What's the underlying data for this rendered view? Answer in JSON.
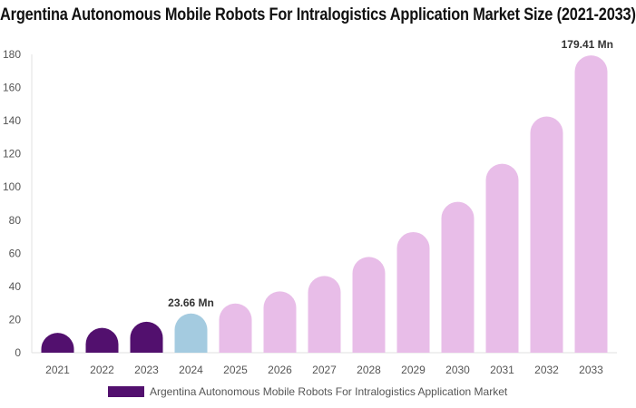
{
  "chart_data": {
    "type": "bar",
    "title": "Argentina Autonomous Mobile Robots For Intralogistics Application Market Size (2021-2033)",
    "categories": [
      "2021",
      "2022",
      "2023",
      "2024",
      "2025",
      "2026",
      "2027",
      "2028",
      "2029",
      "2030",
      "2031",
      "2032",
      "2033"
    ],
    "series": [
      {
        "name": "Argentina Autonomous Mobile Robots For Intralogistics Application Market",
        "values": [
          12,
          15,
          18.7,
          23.66,
          29.7,
          37,
          46.3,
          57.8,
          72.8,
          91,
          114,
          142.5,
          179.41
        ]
      }
    ],
    "data_labels": [
      {
        "category": "2024",
        "text": "23.66 Mn"
      },
      {
        "category": "2033",
        "text": "179.41 Mn"
      }
    ],
    "ylim": [
      0,
      180
    ],
    "yticks": [
      0,
      20,
      40,
      60,
      80,
      100,
      120,
      140,
      160,
      180
    ],
    "grid": false,
    "legend_position": "bottom",
    "colors": {
      "historical": "#52106e",
      "current": "#a4cbe0",
      "forecast": "#e8bde8"
    },
    "xlabel": "",
    "ylabel": ""
  }
}
